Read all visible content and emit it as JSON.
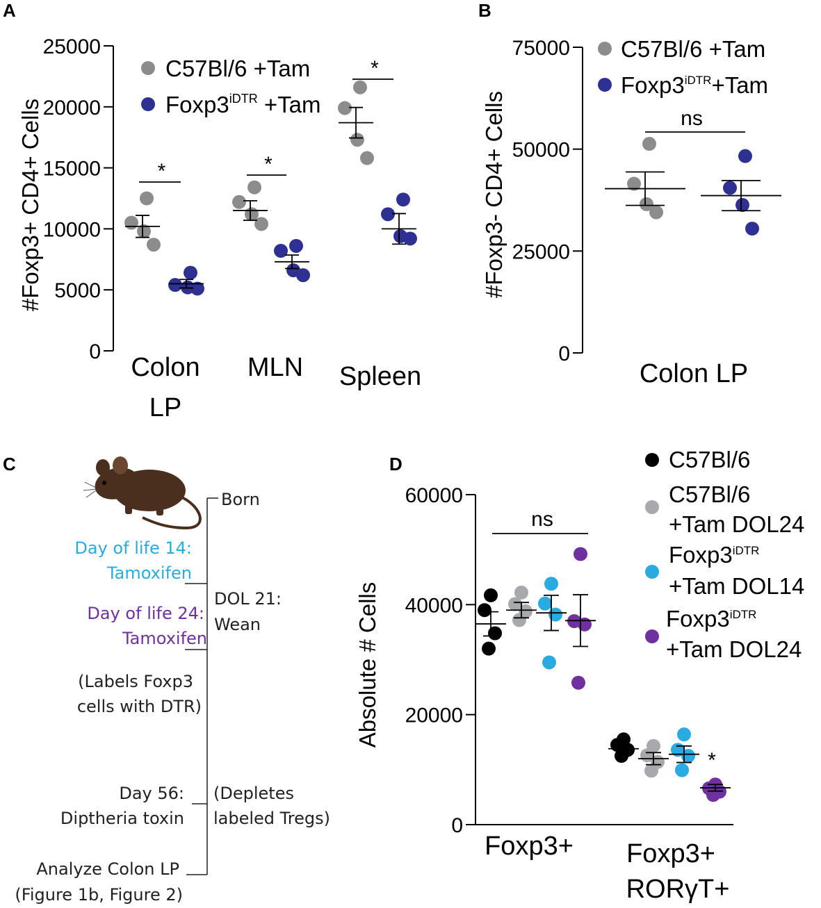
{
  "panels": {
    "a": "A",
    "b": "B",
    "c": "C",
    "d": "D"
  },
  "colors": {
    "gray": "#8c8c8e",
    "navy": "#2e3192",
    "black": "#000000",
    "cyan": "#29abe2",
    "purple": "#7030a0",
    "lightgray": "#a7a9ac",
    "mouse": "#4a2e1e"
  },
  "chart_data": [
    {
      "panel": "A",
      "type": "scatter",
      "ylabel": "#Foxp3+ CD4+  Cells",
      "ylim": [
        0,
        25000
      ],
      "yticks": [
        "0",
        "5000",
        "10000",
        "15000",
        "20000",
        "25000"
      ],
      "categories": [
        "Colon LP",
        "MLN",
        "Spleen"
      ],
      "category_lines": [
        [
          "Colon",
          "LP"
        ],
        [
          "MLN"
        ],
        [
          "Spleen"
        ]
      ],
      "legend": [
        {
          "name": "C57Bl/6 +Tam",
          "color": "#8c8c8e"
        },
        {
          "name": "Foxp3",
          "sup": "iDTR",
          "suffix": " +Tam",
          "color": "#2e3192"
        }
      ],
      "series": [
        {
          "name": "C57Bl/6 +Tam",
          "color": "#8c8c8e",
          "points": [
            [
              12500,
              10500,
              9800,
              8700
            ],
            [
              13400,
              12200,
              11200,
              10400
            ],
            [
              21600,
              19900,
              17300,
              15800
            ]
          ],
          "mean": [
            10200,
            11500,
            18700
          ],
          "sem": [
            900,
            800,
            1250
          ]
        },
        {
          "name": "Foxp3iDTR +Tam",
          "color": "#2e3192",
          "points": [
            [
              6400,
              5400,
              5200,
              5100
            ],
            [
              8600,
              8200,
              6600,
              6200
            ],
            [
              12400,
              11200,
              9400,
              9200
            ]
          ],
          "mean": [
            5500,
            7300,
            10000
          ],
          "sem": [
            350,
            550,
            1250
          ]
        }
      ],
      "significance": [
        "*",
        "*",
        "*"
      ]
    },
    {
      "panel": "B",
      "type": "scatter",
      "ylabel": "#Foxp3- CD4+ Cells",
      "ylim": [
        0,
        75000
      ],
      "yticks": [
        "0",
        "25000",
        "50000",
        "75000"
      ],
      "categories": [
        "Colon LP"
      ],
      "legend": [
        {
          "name": "C57Bl/6 +Tam",
          "color": "#8c8c8e"
        },
        {
          "name": "Foxp3",
          "sup": "iDTR",
          "suffix": "+Tam",
          "color": "#2e3192"
        }
      ],
      "series": [
        {
          "name": "C57Bl/6 +Tam",
          "color": "#8c8c8e",
          "points": [
            51300,
            41500,
            36500,
            34500
          ],
          "mean": 40300,
          "sem": 4100
        },
        {
          "name": "Foxp3iDTR +Tam",
          "color": "#2e3192",
          "points": [
            48300,
            40500,
            36300,
            30500
          ],
          "mean": 38600,
          "sem": 3700
        }
      ],
      "significance": "ns"
    },
    {
      "panel": "D",
      "type": "scatter",
      "ylabel": "Absolute # Cells",
      "ylim": [
        0,
        60000
      ],
      "yticks": [
        "0",
        "20000",
        "40000",
        "60000"
      ],
      "categories": [
        "Foxp3+",
        "Foxp3+ RORγT+"
      ],
      "category_lines": [
        [
          "Foxp3+"
        ],
        [
          "Foxp3+",
          "RORγT+"
        ]
      ],
      "legend": [
        {
          "lines": [
            "C57Bl/6"
          ],
          "color": "#000000"
        },
        {
          "lines": [
            "C57Bl/6",
            "+Tam DOL24"
          ],
          "color": "#a7a9ac"
        },
        {
          "lines": [
            "Foxp3",
            "+Tam DOL14"
          ],
          "sup": "iDTR",
          "color": "#29abe2"
        },
        {
          "lines": [
            "Foxp3",
            "+Tam DOL24"
          ],
          "sup": "iDTR",
          "color": "#7030a0"
        }
      ],
      "series": [
        {
          "name": "C57Bl/6",
          "color": "#000000",
          "points": [
            [
              41700,
              39000,
              34800,
              32000
            ],
            [
              15500,
              14500,
              13600,
              12500
            ]
          ],
          "mean": [
            36500,
            13800
          ],
          "sem": [
            2200,
            700
          ]
        },
        {
          "name": "C57Bl/6 +Tam DOL24",
          "color": "#a7a9ac",
          "points": [
            [
              42200,
              40100,
              38800,
              37200
            ],
            [
              14300,
              12600,
              11400,
              9800
            ]
          ],
          "mean": [
            39000,
            12000
          ],
          "sem": [
            1400,
            1100
          ]
        },
        {
          "name": "Foxp3iDTR +Tam DOL14",
          "color": "#29abe2",
          "points": [
            [
              43800,
              40200,
              38200,
              29500
            ],
            [
              16400,
              13600,
              12500,
              9900
            ]
          ],
          "mean": [
            38500,
            12800
          ],
          "sem": [
            3200,
            1500
          ]
        },
        {
          "name": "Foxp3iDTR +Tam DOL24",
          "color": "#7030a0",
          "points": [
            [
              49200,
              37000,
              36400,
              25800
            ],
            [
              7300,
              6600,
              6000,
              5400
            ]
          ],
          "mean": [
            37100,
            6700
          ],
          "sem": [
            4700,
            600
          ]
        }
      ],
      "significance": [
        "ns",
        "*"
      ]
    }
  ],
  "timeline": {
    "born": "Born",
    "dol14_lines": [
      "Day of life 14:",
      "Tamoxifen"
    ],
    "dol21_lines": [
      "DOL 21:",
      "Wean"
    ],
    "dol24_lines": [
      "Day of life 24:",
      "Tamoxifen"
    ],
    "labels_lines": [
      "(Labels Foxp3",
      "cells with DTR)"
    ],
    "day56_lines": [
      "Day 56:",
      "Diptheria toxin"
    ],
    "depletes_lines": [
      "(Depletes",
      "labeled Tregs)"
    ],
    "analyze_lines": [
      "Analyze Colon LP",
      "(Figure 1b, Figure 2)"
    ]
  }
}
